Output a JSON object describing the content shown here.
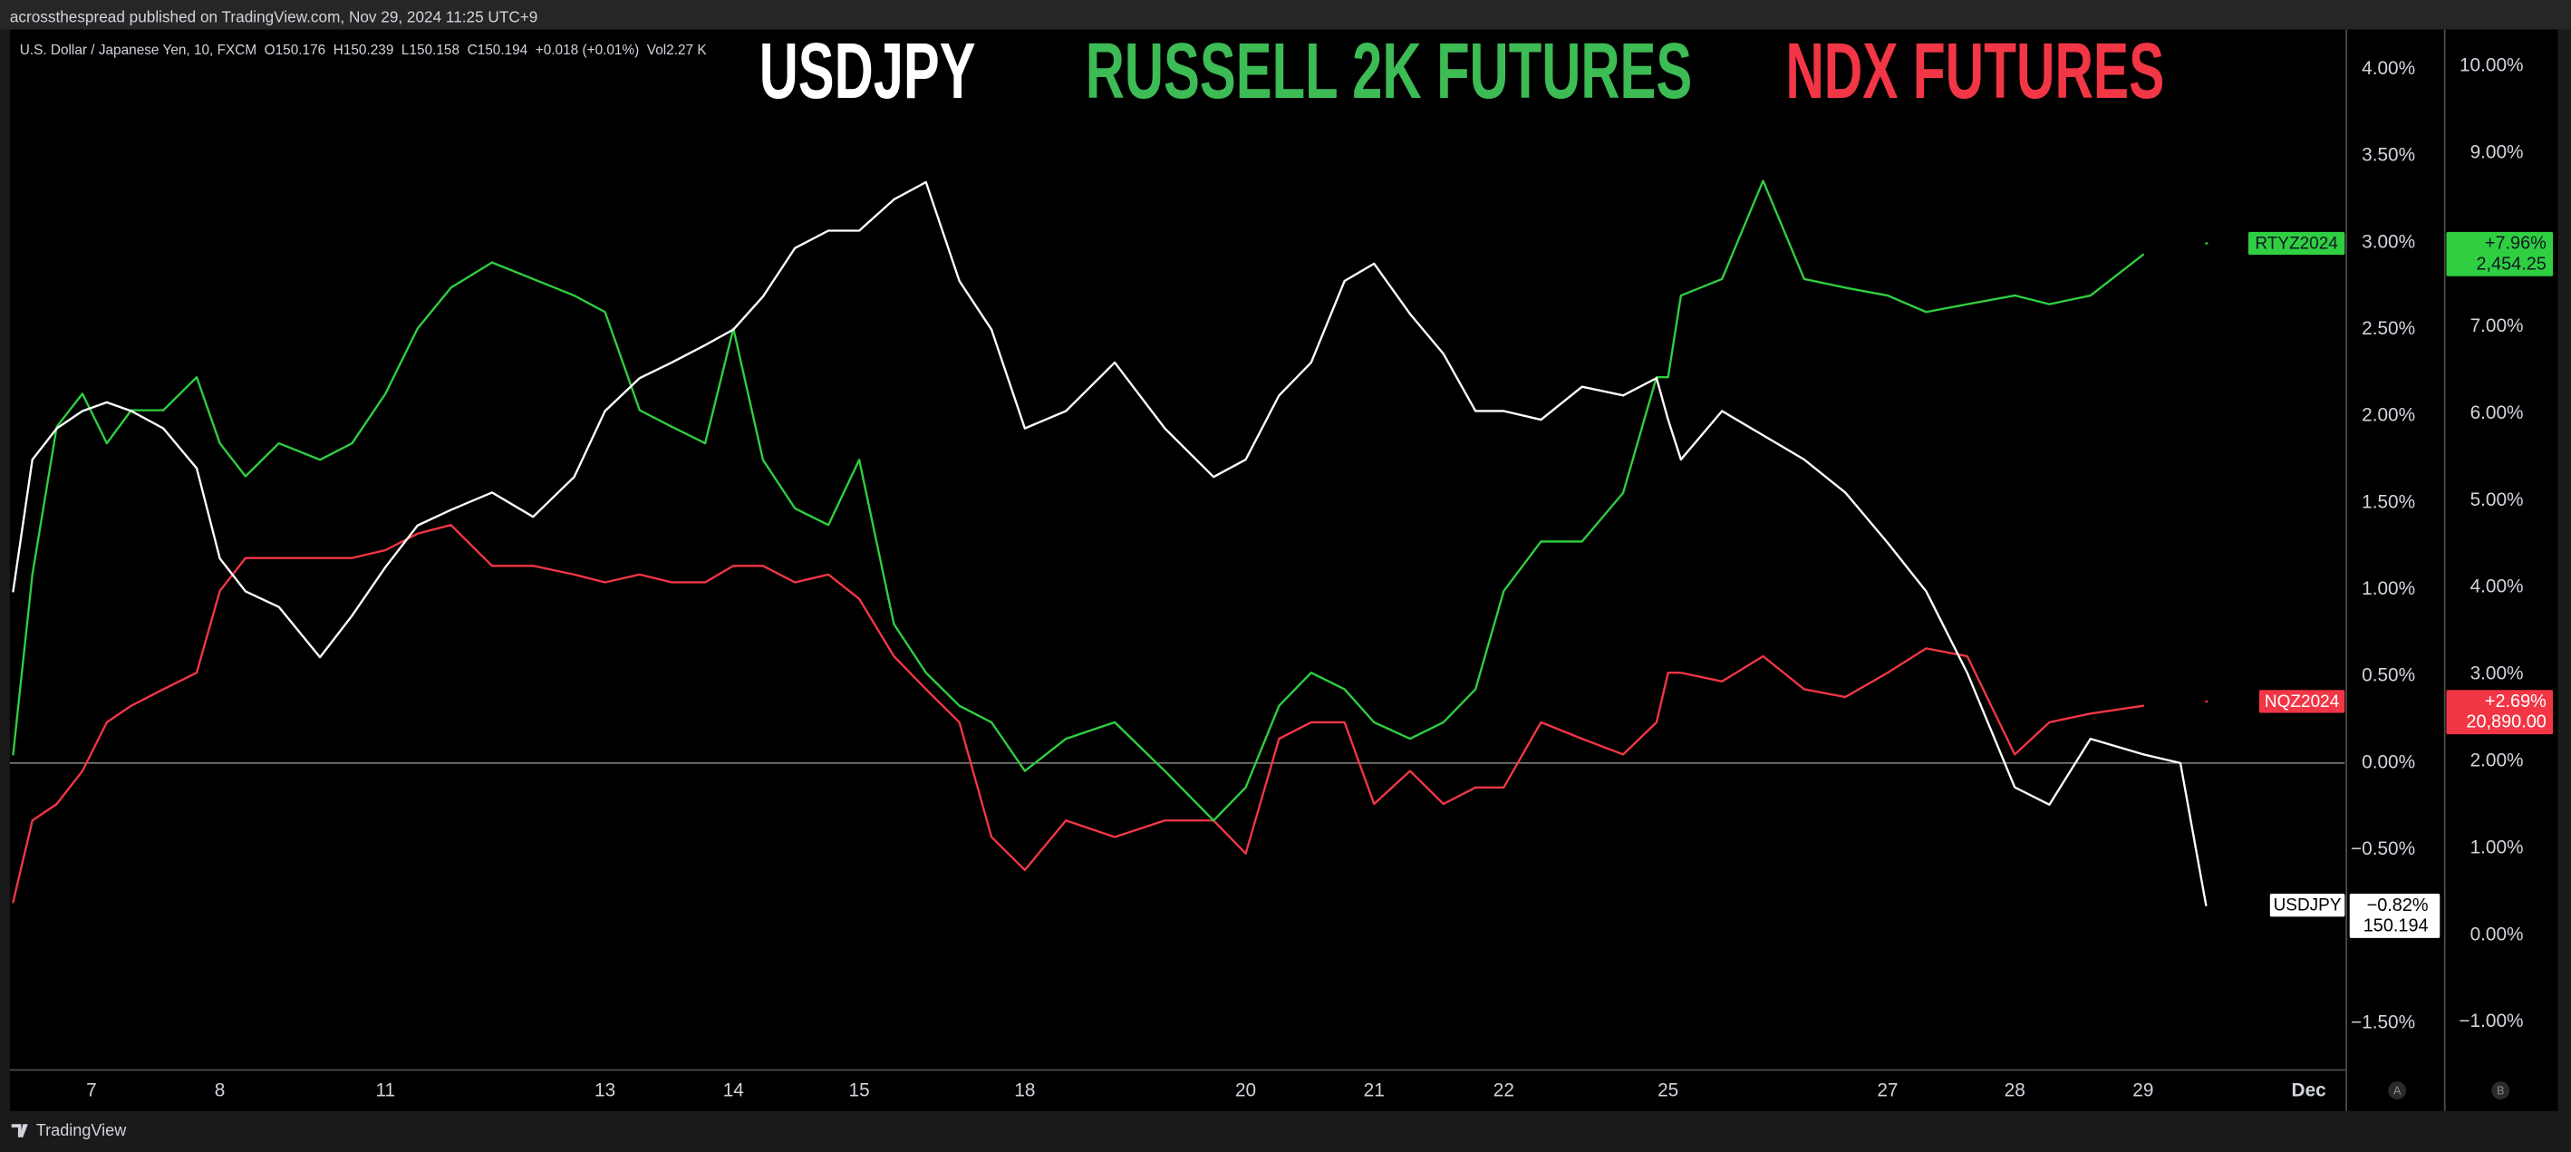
{
  "header": "acrossthespread published on TradingView.com, Nov 29, 2024 11:25 UTC+9",
  "footer": "TradingView",
  "chart_data": {
    "type": "line",
    "info": "U.S. Dollar / Japanese Yen, 10, FXCM  O150.176  H150.239  L150.158  C150.194  +0.018 (+0.01%)  Vol2.27 K",
    "annotations": [
      {
        "text": "USDJPY",
        "color": "#ffffff"
      },
      {
        "text": "RUSSELL 2K FUTURES",
        "color": "#3dbb55"
      },
      {
        "text": "NDX FUTURES",
        "color": "#f23645"
      }
    ],
    "axis_markers": [
      "A",
      "B"
    ],
    "zero_line": true,
    "x": [
      0,
      0.15,
      0.34,
      0.54,
      0.73,
      0.92,
      1.17,
      1.43,
      1.61,
      1.81,
      2.07,
      2.39,
      2.64,
      2.9,
      3.15,
      3.41,
      3.73,
      4.05,
      4.37,
      4.61,
      4.88,
      5.13,
      5.39,
      5.61,
      5.84,
      6.09,
      6.35,
      6.59,
      6.86,
      7.11,
      7.37,
      7.62,
      7.88,
      8.2,
      8.58,
      8.97,
      9.35,
      9.6,
      9.86,
      10.11,
      10.37,
      10.6,
      10.88,
      11.14,
      11.39,
      11.61,
      11.9,
      12.22,
      12.54,
      12.8,
      12.89,
      12.99,
      13.31,
      13.63,
      13.95,
      14.27,
      14.6,
      14.9,
      15.22,
      15.59,
      15.86,
      16.18,
      16.59,
      16.88,
      17.08
    ],
    "xlim": [
      0,
      18.16
    ],
    "xticks": [
      {
        "value": 0.61,
        "label": "7"
      },
      {
        "value": 1.61,
        "label": "8"
      },
      {
        "value": 2.9,
        "label": "11"
      },
      {
        "value": 4.61,
        "label": "13"
      },
      {
        "value": 5.61,
        "label": "14"
      },
      {
        "value": 6.59,
        "label": "15"
      },
      {
        "value": 7.88,
        "label": "18"
      },
      {
        "value": 9.6,
        "label": "20"
      },
      {
        "value": 10.6,
        "label": "21"
      },
      {
        "value": 11.61,
        "label": "22"
      },
      {
        "value": 12.89,
        "label": "25"
      },
      {
        "value": 14.6,
        "label": "27"
      },
      {
        "value": 15.59,
        "label": "28"
      },
      {
        "value": 16.59,
        "label": "29"
      },
      {
        "value": 17.88,
        "label": "Dec"
      }
    ],
    "ylim": [
      -1.77,
      4.23
    ],
    "yticks": [
      {
        "value": 4,
        "label": "4.00%"
      },
      {
        "value": 3.5,
        "label": "3.50%"
      },
      {
        "value": 3,
        "label": "3.00%"
      },
      {
        "value": 2.5,
        "label": "2.50%"
      },
      {
        "value": 2,
        "label": "2.00%"
      },
      {
        "value": 1.5,
        "label": "1.50%"
      },
      {
        "value": 1,
        "label": "1.00%"
      },
      {
        "value": 0.5,
        "label": "0.50%"
      },
      {
        "value": 0,
        "label": "0.00%"
      },
      {
        "value": -0.5,
        "label": "−0.50%"
      },
      {
        "value": -1.5,
        "label": "−1.50%"
      }
    ],
    "y2lim": [
      -1.55,
      10.42
    ],
    "y2ticks": [
      {
        "value": 10,
        "label": "10.00%"
      },
      {
        "value": 9,
        "label": "9.00%"
      },
      {
        "value": 7,
        "label": "7.00%"
      },
      {
        "value": 6,
        "label": "6.00%"
      },
      {
        "value": 5,
        "label": "5.00%"
      },
      {
        "value": 4,
        "label": "4.00%"
      },
      {
        "value": 3,
        "label": "3.00%"
      },
      {
        "value": 2,
        "label": "2.00%"
      },
      {
        "value": 1,
        "label": "1.00%"
      },
      {
        "value": 0,
        "label": "0.00%"
      },
      {
        "value": -1,
        "label": "−1.00%"
      }
    ],
    "grid": false,
    "series": [
      {
        "name": "USDJPY",
        "color": "#ffffff",
        "text_color": "#000000",
        "axis": "y",
        "values": [
          0.99,
          1.75,
          1.93,
          2.03,
          2.08,
          2.03,
          1.93,
          1.7,
          1.18,
          0.99,
          0.9,
          0.61,
          0.85,
          1.13,
          1.37,
          1.46,
          1.56,
          1.42,
          1.65,
          2.03,
          2.22,
          2.31,
          2.41,
          2.5,
          2.69,
          2.97,
          3.07,
          3.07,
          3.25,
          3.35,
          2.78,
          2.5,
          1.93,
          2.03,
          2.31,
          1.93,
          1.65,
          1.75,
          2.12,
          2.31,
          2.78,
          2.88,
          2.59,
          2.36,
          2.03,
          2.03,
          1.98,
          2.17,
          2.12,
          2.22,
          1.98,
          1.75,
          2.03,
          1.89,
          1.75,
          1.56,
          1.27,
          0.99,
          0.52,
          -0.14,
          -0.24,
          0.14,
          0.05,
          0,
          -0.82
        ],
        "change_label": "−0.82%",
        "price_label": "150.194"
      },
      {
        "name": "RTYZ2024",
        "color": "#2fcf41",
        "text_color": "#131722",
        "axis": "y2",
        "values": [
          2.08,
          4.15,
          5.85,
          6.23,
          5.66,
          6.04,
          6.04,
          6.42,
          5.66,
          5.28,
          5.66,
          5.47,
          5.66,
          6.23,
          6.98,
          7.45,
          7.74,
          7.55,
          7.36,
          7.17,
          6.04,
          5.85,
          5.66,
          6.98,
          5.47,
          4.91,
          4.72,
          5.47,
          3.58,
          3.02,
          2.64,
          2.45,
          1.89,
          2.26,
          2.45,
          1.89,
          1.32,
          1.7,
          2.64,
          3.02,
          2.83,
          2.45,
          2.26,
          2.45,
          2.83,
          3.96,
          4.53,
          4.53,
          5.09,
          6.42,
          6.42,
          7.36,
          7.55,
          8.68,
          7.55,
          7.45,
          7.36,
          7.17,
          7.26,
          7.36,
          7.26,
          7.36,
          7.83,
          null,
          7.96
        ],
        "change_label": "+7.96%",
        "price_label": "2,454.25"
      },
      {
        "name": "NQZ2024",
        "color": "#f23645",
        "text_color": "#ffffff",
        "axis": "y2",
        "values": [
          0.38,
          1.32,
          1.51,
          1.89,
          2.45,
          2.64,
          2.83,
          3.02,
          3.96,
          4.34,
          4.34,
          4.34,
          4.34,
          4.43,
          4.62,
          4.72,
          4.25,
          4.25,
          4.15,
          4.06,
          4.15,
          4.06,
          4.06,
          4.25,
          4.25,
          4.06,
          4.15,
          3.87,
          3.21,
          2.83,
          2.45,
          1.13,
          0.75,
          1.32,
          1.13,
          1.32,
          1.32,
          0.94,
          2.26,
          2.45,
          2.45,
          1.51,
          1.89,
          1.51,
          1.7,
          1.7,
          2.45,
          2.26,
          2.08,
          2.45,
          3.02,
          3.02,
          2.92,
          3.21,
          2.83,
          2.74,
          3.02,
          3.3,
          3.21,
          2.08,
          2.45,
          2.55,
          2.64,
          null,
          2.69
        ],
        "change_label": "+2.69%",
        "price_label": "20,890.00"
      }
    ]
  }
}
